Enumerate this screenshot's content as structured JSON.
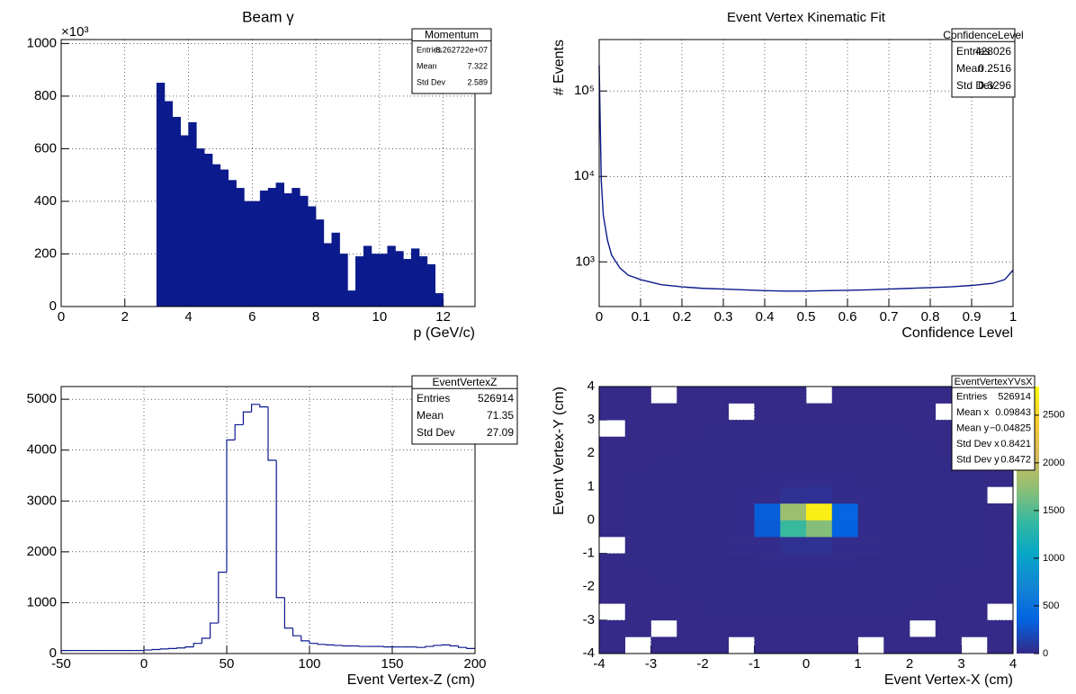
{
  "chart_data": [
    {
      "type": "histogram",
      "title": "Beam γ",
      "xlabel": "p (GeV/c)",
      "y_exponent": "×10³",
      "color": "#0b1a8c",
      "fill": true,
      "bins": [
        3,
        3.25,
        3.5,
        3.75,
        4,
        4.25,
        4.5,
        4.75,
        5,
        5.25,
        5.5,
        5.75,
        6,
        6.25,
        6.5,
        6.75,
        7,
        7.25,
        7.5,
        7.75,
        8,
        8.25,
        8.5,
        8.75,
        9,
        9.25,
        9.5,
        9.75,
        10,
        10.25,
        10.5,
        10.75,
        11,
        11.25,
        11.5,
        11.75,
        12
      ],
      "values": [
        850,
        780,
        720,
        650,
        700,
        600,
        580,
        540,
        520,
        480,
        450,
        400,
        400,
        440,
        450,
        470,
        430,
        450,
        420,
        380,
        330,
        240,
        280,
        200,
        60,
        190,
        230,
        200,
        200,
        230,
        210,
        180,
        220,
        190,
        160,
        50
      ],
      "xlim": [
        0,
        13
      ],
      "ylim": [
        0,
        1015
      ],
      "xticks": [
        0,
        2,
        4,
        6,
        8,
        10,
        12
      ],
      "yticks": [
        0,
        200,
        400,
        600,
        800,
        1000
      ],
      "grid": true,
      "stats": {
        "title": "Momentum",
        "rows": [
          {
            "label": "Entries",
            "value": "8.262722e+07"
          },
          {
            "label": "Mean",
            "value": "7.322"
          },
          {
            "label": "Std Dev",
            "value": "2.589"
          }
        ]
      }
    },
    {
      "type": "line",
      "title": "Event Vertex Kinematic Fit",
      "xlabel": "Confidence Level",
      "ylabel": "# Events",
      "color": "#0b1a8c",
      "log_y": true,
      "x": [
        0,
        0.005,
        0.01,
        0.02,
        0.03,
        0.05,
        0.07,
        0.1,
        0.15,
        0.2,
        0.25,
        0.3,
        0.35,
        0.4,
        0.45,
        0.5,
        0.55,
        0.6,
        0.65,
        0.7,
        0.75,
        0.8,
        0.85,
        0.9,
        0.95,
        0.98,
        1.0
      ],
      "values": [
        200000,
        9000,
        3500,
        1800,
        1200,
        850,
        700,
        620,
        540,
        510,
        490,
        480,
        470,
        460,
        455,
        455,
        460,
        465,
        470,
        480,
        490,
        500,
        510,
        530,
        560,
        620,
        800
      ],
      "xlim": [
        0,
        1
      ],
      "ylim": [
        300,
        400000
      ],
      "xticks": [
        0,
        0.1,
        0.2,
        0.3,
        0.4,
        0.5,
        0.6,
        0.7,
        0.8,
        0.9,
        1
      ],
      "yticks": [
        {
          "value": 1000,
          "label": "10³"
        },
        {
          "value": 10000,
          "label": "10⁴"
        },
        {
          "value": 100000,
          "label": "10⁵"
        }
      ],
      "grid": true,
      "stats": {
        "title": "ConfidenceLevel",
        "rows": [
          {
            "label": "Entries",
            "value": "428026"
          },
          {
            "label": "Mean",
            "value": "0.2516"
          },
          {
            "label": "Std Dev",
            "value": "0.3296"
          }
        ]
      }
    },
    {
      "type": "histogram",
      "xlabel": "Event Vertex-Z (cm)",
      "color": "#0b1a8c",
      "fill": false,
      "bins": [
        -50,
        -45,
        -40,
        -35,
        -30,
        -25,
        -20,
        -15,
        -10,
        -5,
        0,
        5,
        10,
        15,
        20,
        25,
        30,
        35,
        40,
        45,
        50,
        55,
        60,
        65,
        70,
        75,
        80,
        85,
        90,
        95,
        100,
        105,
        110,
        115,
        120,
        125,
        130,
        135,
        140,
        145,
        150,
        155,
        160,
        165,
        170,
        175,
        180,
        185,
        190,
        195,
        200
      ],
      "values": [
        60,
        60,
        60,
        60,
        60,
        60,
        60,
        60,
        60,
        60,
        70,
        80,
        90,
        100,
        110,
        130,
        200,
        300,
        600,
        1600,
        4200,
        4500,
        4750,
        4900,
        4850,
        3800,
        1100,
        500,
        350,
        250,
        200,
        180,
        170,
        160,
        150,
        150,
        140,
        140,
        140,
        130,
        130,
        130,
        130,
        120,
        140,
        160,
        170,
        150,
        120,
        100
      ],
      "xlim": [
        -50,
        200
      ],
      "ylim": [
        0,
        5250
      ],
      "xticks": [
        -50,
        0,
        50,
        100,
        150,
        200
      ],
      "yticks": [
        0,
        1000,
        2000,
        3000,
        4000,
        5000
      ],
      "grid": true,
      "stats": {
        "title": "EventVertexZ",
        "rows": [
          {
            "label": "Entries",
            "value": "526914"
          },
          {
            "label": "Mean",
            "value": "71.35"
          },
          {
            "label": "Std Dev",
            "value": "27.09"
          }
        ]
      }
    },
    {
      "type": "heatmap",
      "xlabel": "Event Vertex-X (cm)",
      "ylabel": "Event Vertex-Y (cm)",
      "xbins": [
        -4,
        -3.5,
        -3,
        -2.5,
        -2,
        -1.5,
        -1,
        -0.5,
        0,
        0.5,
        1,
        1.5,
        2,
        2.5,
        3,
        3.5,
        4
      ],
      "ybins": [
        -4,
        -3.5,
        -3,
        -2.5,
        -2,
        -1.5,
        -1,
        -0.5,
        0,
        0.5,
        1,
        1.5,
        2,
        2.5,
        3,
        3.5,
        4
      ],
      "z": [
        [
          1,
          0,
          2,
          1,
          3,
          0,
          2,
          1,
          2,
          3,
          0,
          2,
          1,
          3,
          0,
          1
        ],
        [
          2,
          1,
          0,
          3,
          2,
          2,
          3,
          1,
          2,
          2,
          3,
          1,
          0,
          2,
          1,
          2
        ],
        [
          0,
          2,
          3,
          2,
          4,
          5,
          5,
          6,
          6,
          5,
          5,
          4,
          3,
          2,
          3,
          0
        ],
        [
          2,
          3,
          2,
          4,
          5,
          6,
          7,
          7,
          7,
          7,
          6,
          5,
          4,
          3,
          2,
          1
        ],
        [
          1,
          3,
          5,
          6,
          7,
          8,
          9,
          9,
          9,
          9,
          8,
          7,
          6,
          5,
          3,
          2
        ],
        [
          2,
          4,
          5,
          7,
          8,
          9,
          10,
          11,
          11,
          10,
          9,
          8,
          7,
          5,
          4,
          1
        ],
        [
          0,
          4,
          6,
          7,
          9,
          10,
          12,
          40,
          45,
          12,
          10,
          9,
          7,
          6,
          4,
          2
        ],
        [
          2,
          5,
          6,
          8,
          9,
          11,
          300,
          1400,
          1700,
          350,
          11,
          9,
          8,
          6,
          5,
          2
        ],
        [
          1,
          5,
          6,
          8,
          9,
          11,
          320,
          1800,
          2700,
          380,
          11,
          9,
          8,
          6,
          5,
          1
        ],
        [
          2,
          4,
          6,
          7,
          9,
          10,
          12,
          45,
          50,
          12,
          10,
          9,
          7,
          6,
          4,
          0
        ],
        [
          1,
          4,
          5,
          7,
          8,
          9,
          10,
          11,
          11,
          10,
          9,
          8,
          7,
          5,
          4,
          2
        ],
        [
          2,
          3,
          5,
          6,
          7,
          8,
          9,
          9,
          9,
          9,
          8,
          7,
          6,
          5,
          3,
          1
        ],
        [
          1,
          3,
          2,
          4,
          5,
          6,
          7,
          7,
          7,
          7,
          6,
          5,
          4,
          3,
          2,
          2
        ],
        [
          0,
          2,
          3,
          2,
          4,
          5,
          5,
          6,
          6,
          5,
          5,
          4,
          3,
          2,
          3,
          1
        ],
        [
          2,
          1,
          2,
          3,
          2,
          0,
          3,
          1,
          2,
          2,
          3,
          1,
          2,
          0,
          1,
          2
        ],
        [
          1,
          2,
          0,
          1,
          3,
          2,
          2,
          1,
          0,
          3,
          2,
          2,
          1,
          3,
          2,
          1
        ]
      ],
      "colormap": [
        "#352a87",
        "#0363e1",
        "#1485d4",
        "#06a7c6",
        "#38b99e",
        "#92bf73",
        "#d9ba56",
        "#fcce2e",
        "#f9fb0e"
      ],
      "xlim": [
        -4,
        4
      ],
      "ylim": [
        -4,
        4
      ],
      "zlim": [
        0,
        2800
      ],
      "xticks": [
        -4,
        -3,
        -2,
        -1,
        0,
        1,
        2,
        3,
        4
      ],
      "yticks": [
        -4,
        -3,
        -2,
        -1,
        0,
        1,
        2,
        3,
        4
      ],
      "zticks": [
        0,
        500,
        1000,
        1500,
        2000,
        2500
      ],
      "grid": true,
      "stats": {
        "title": "EventVertexYVsX",
        "rows": [
          {
            "label": "Entries",
            "value": "526914"
          },
          {
            "label": "Mean x",
            "value": "0.09843"
          },
          {
            "label": "Mean y",
            "value": "−0.04825"
          },
          {
            "label": "Std Dev x",
            "value": "0.8421"
          },
          {
            "label": "Std Dev y",
            "value": "0.8472"
          }
        ]
      }
    }
  ]
}
